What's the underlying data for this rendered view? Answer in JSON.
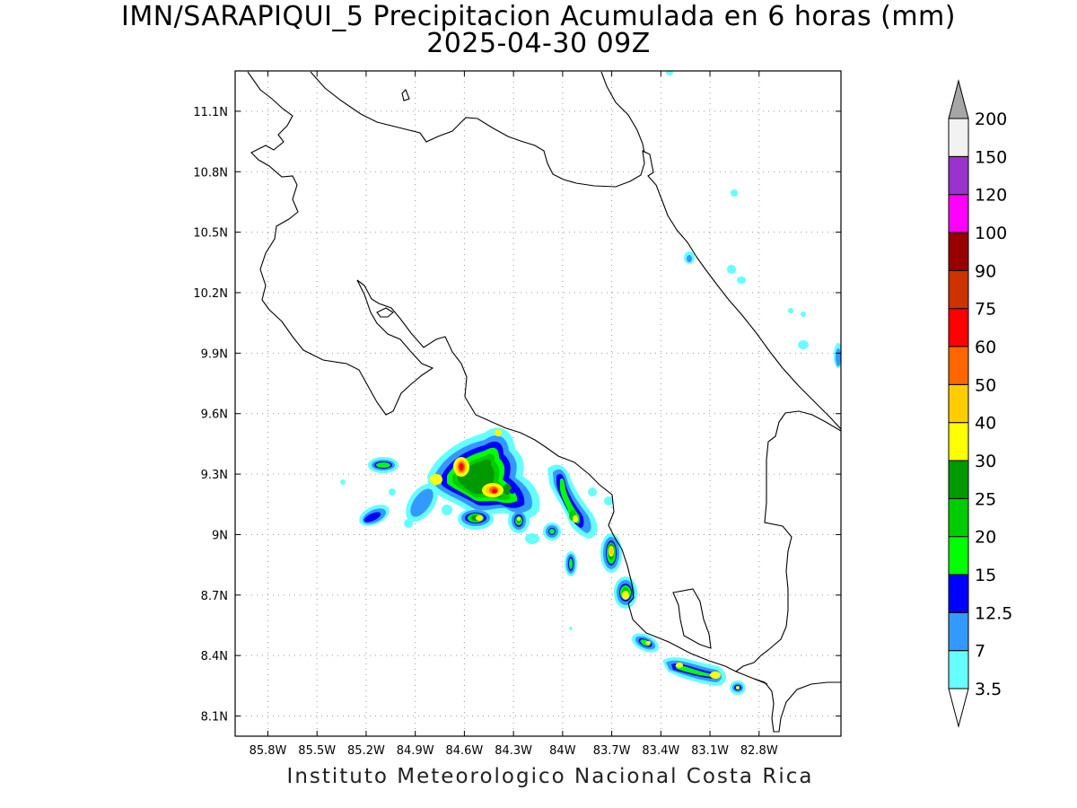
{
  "title": "IMN/SARAPIQUI_5 Precipitacion Acumulada en 6 horas (mm)",
  "subtitle": "2025-04-30 09Z",
  "footer": "Instituto Meteorologico Nacional Costa Rica",
  "map": {
    "lon_range": [
      -86.0,
      -82.3
    ],
    "lat_range": [
      8.0,
      11.3
    ],
    "lon_ticks": [
      "85.8W",
      "85.5W",
      "85.2W",
      "84.9W",
      "84.6W",
      "84.3W",
      "84W",
      "83.7W",
      "83.4W",
      "83.1W",
      "82.8W"
    ],
    "lat_ticks": [
      "11.1N",
      "10.8N",
      "10.5N",
      "10.2N",
      "9.9N",
      "9.6N",
      "9.3N",
      "9N",
      "8.7N",
      "8.4N",
      "8.1N"
    ],
    "grid": "dotted"
  },
  "legend": {
    "labels": [
      "3.5",
      "7",
      "12.5",
      "15",
      "20",
      "25",
      "30",
      "40",
      "50",
      "60",
      "75",
      "90",
      "100",
      "120",
      "150",
      "200"
    ],
    "colors": [
      "#66ffff",
      "#3399ff",
      "#0000ff",
      "#00ff00",
      "#00cc00",
      "#009900",
      "#ffff00",
      "#ffcc00",
      "#ff6600",
      "#ff0000",
      "#cc3300",
      "#990000",
      "#ff00ff",
      "#9933cc",
      "#f2f2f2",
      "#a6a6a6"
    ]
  }
}
